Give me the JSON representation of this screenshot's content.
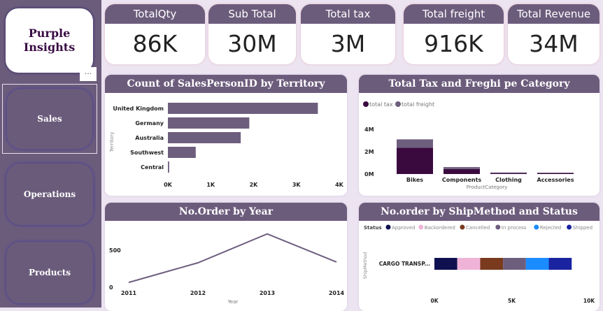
{
  "sidebar": {
    "logo": "Purple Insights",
    "more": "...",
    "items": [
      {
        "label": "Sales",
        "selected": true
      },
      {
        "label": "Operations"
      },
      {
        "label": "Products"
      }
    ]
  },
  "kpis": [
    {
      "label": "TotalQty",
      "value": "86K"
    },
    {
      "label": "Sub Total",
      "value": "30M"
    },
    {
      "label": "Total tax",
      "value": "3M"
    },
    {
      "label": "Total freight",
      "value": "916K"
    },
    {
      "label": "Total Revenue",
      "value": "34M"
    }
  ],
  "colors": {
    "accent": "#6c5c7c",
    "tax": "#3a0a3f",
    "freight": "#6e5e7e"
  },
  "chart_data": [
    {
      "type": "bar",
      "orientation": "horizontal",
      "title": "Count of SalesPersonID by Territory",
      "ylabel": "Territory",
      "xlabel": "",
      "categories": [
        "United Kingdom",
        "Germany",
        "Australia",
        "Southwest",
        "Central"
      ],
      "values": [
        3500,
        1900,
        1700,
        650,
        30
      ],
      "xticks": [
        "0K",
        "1K",
        "2K",
        "3K",
        "4K"
      ],
      "xlim": [
        0,
        4000
      ]
    },
    {
      "type": "bar",
      "stacked": true,
      "title": "Total Tax and Freghi pe Category",
      "xlabel": "ProductCategory",
      "categories": [
        "Bikes",
        "Components",
        "Clothing",
        "Accessories"
      ],
      "series": [
        {
          "name": "total tax",
          "values": [
            2350000,
            450000,
            80000,
            30000
          ]
        },
        {
          "name": "total freight",
          "values": [
            750000,
            170000,
            25000,
            10000
          ]
        }
      ],
      "yticks": [
        "0M",
        "2M",
        "4M"
      ],
      "ylim": [
        0,
        4000000
      ],
      "legend": "top-left"
    },
    {
      "type": "line",
      "title": "No.Order by Year",
      "xlabel": "Year",
      "x": [
        "2011",
        "2012",
        "2013",
        "2014"
      ],
      "values": [
        65,
        330,
        720,
        340
      ],
      "yticks": [
        "0",
        "500"
      ],
      "ylim": [
        0,
        800
      ]
    },
    {
      "type": "bar",
      "orientation": "horizontal",
      "stacked": true,
      "title": "No.order by ShipMethod and Status",
      "ylabel": "ShipMethod",
      "legend_title": "Status",
      "categories": [
        "CARGO TRANSP..."
      ],
      "series": [
        {
          "name": "Approved",
          "values": [
            1480
          ],
          "color": "#0f1050"
        },
        {
          "name": "Backordered",
          "values": [
            1480
          ],
          "color": "#f0b3d8"
        },
        {
          "name": "Cancelled",
          "values": [
            1480
          ],
          "color": "#7a3a1e"
        },
        {
          "name": "In process",
          "values": [
            1480
          ],
          "color": "#6e5e7e"
        },
        {
          "name": "Rejected",
          "values": [
            1480
          ],
          "color": "#1a8cff"
        },
        {
          "name": "Shipped",
          "values": [
            1480
          ],
          "color": "#1a23a0"
        }
      ],
      "xticks": [
        "0K",
        "5K",
        "10K"
      ],
      "xlim": [
        0,
        10000
      ],
      "legend": "top-left"
    }
  ]
}
